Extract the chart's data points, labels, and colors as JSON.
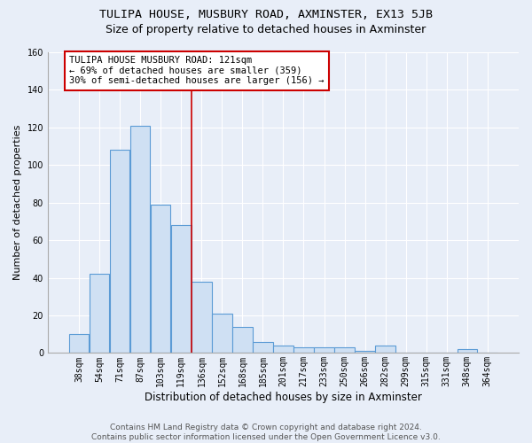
{
  "title": "TULIPA HOUSE, MUSBURY ROAD, AXMINSTER, EX13 5JB",
  "subtitle": "Size of property relative to detached houses in Axminster",
  "xlabel": "Distribution of detached houses by size in Axminster",
  "ylabel": "Number of detached properties",
  "categories": [
    "38sqm",
    "54sqm",
    "71sqm",
    "87sqm",
    "103sqm",
    "119sqm",
    "136sqm",
    "152sqm",
    "168sqm",
    "185sqm",
    "201sqm",
    "217sqm",
    "233sqm",
    "250sqm",
    "266sqm",
    "282sqm",
    "299sqm",
    "315sqm",
    "331sqm",
    "348sqm",
    "364sqm"
  ],
  "values": [
    10,
    42,
    108,
    121,
    79,
    68,
    38,
    21,
    14,
    6,
    4,
    3,
    3,
    3,
    1,
    4,
    0,
    0,
    0,
    2,
    0
  ],
  "bar_color": "#cfe0f3",
  "bar_edge_color": "#5b9bd5",
  "vline_x": 5.5,
  "vline_color": "#cc0000",
  "annotation_line1": "TULIPA HOUSE MUSBURY ROAD: 121sqm",
  "annotation_line2": "← 69% of detached houses are smaller (359)",
  "annotation_line3": "30% of semi-detached houses are larger (156) →",
  "annotation_box_color": "#ffffff",
  "annotation_box_edge_color": "#cc0000",
  "ylim": [
    0,
    160
  ],
  "yticks": [
    0,
    20,
    40,
    60,
    80,
    100,
    120,
    140,
    160
  ],
  "footnote": "Contains HM Land Registry data © Crown copyright and database right 2024.\nContains public sector information licensed under the Open Government Licence v3.0.",
  "bg_color": "#e8eef8",
  "plot_bg_color": "#e8eef8",
  "grid_color": "#ffffff",
  "title_fontsize": 9.5,
  "subtitle_fontsize": 9,
  "xlabel_fontsize": 8.5,
  "ylabel_fontsize": 8,
  "tick_fontsize": 7,
  "annotation_fontsize": 7.5,
  "footnote_fontsize": 6.5
}
